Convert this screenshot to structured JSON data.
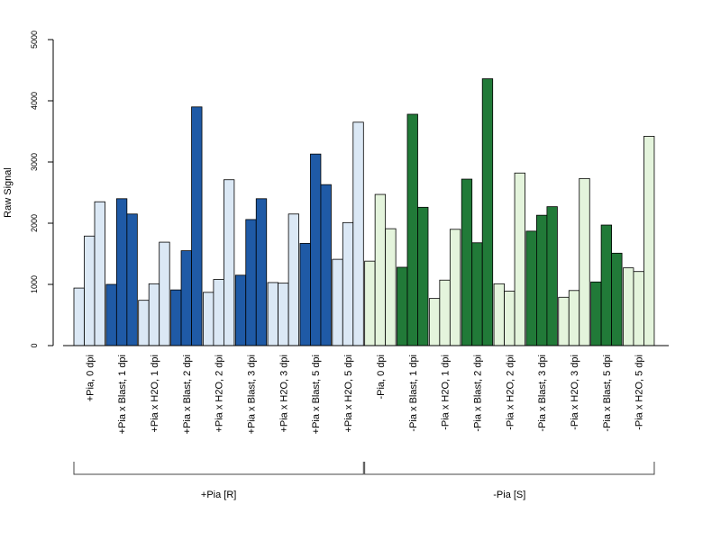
{
  "chart_data": {
    "type": "bar",
    "title": "",
    "xlabel": "",
    "ylabel": "Raw Signal",
    "ylim": [
      0,
      5000
    ],
    "yticks": [
      0,
      1000,
      2000,
      3000,
      4000,
      5000
    ],
    "grid": false,
    "colors": {
      "light_blue": "#dbe8f5",
      "dark_blue": "#1f5aa6",
      "light_green": "#e4f4dc",
      "dark_green": "#217a38",
      "bar_outline": "#000000",
      "axis": "#000000"
    },
    "categories": [
      {
        "label": "+Pia, 0 dpi",
        "color": "light_blue",
        "values": [
          940,
          1790,
          2350
        ]
      },
      {
        "label": "+Pia x Blast, 1 dpi",
        "color": "dark_blue",
        "values": [
          1000,
          2400,
          2150
        ]
      },
      {
        "label": "+Pia x H2O, 1 dpi",
        "color": "light_blue",
        "values": [
          740,
          1010,
          1690
        ]
      },
      {
        "label": "+Pia x Blast, 2 dpi",
        "color": "dark_blue",
        "values": [
          910,
          1550,
          3900
        ]
      },
      {
        "label": "+Pia x H2O, 2 dpi",
        "color": "light_blue",
        "values": [
          870,
          1080,
          2710
        ]
      },
      {
        "label": "+Pia x Blast, 3 dpi",
        "color": "dark_blue",
        "values": [
          1150,
          2060,
          2400
        ]
      },
      {
        "label": "+Pia x H2O, 3 dpi",
        "color": "light_blue",
        "values": [
          1030,
          1020,
          2150
        ]
      },
      {
        "label": "+Pia x Blast, 5 dpi",
        "color": "dark_blue",
        "values": [
          1670,
          3130,
          2630
        ]
      },
      {
        "label": "+Pia x H2O, 5 dpi",
        "color": "light_blue",
        "values": [
          1410,
          2010,
          3650
        ]
      },
      {
        "label": "-Pia, 0 dpi",
        "color": "light_green",
        "values": [
          1380,
          2470,
          1910
        ]
      },
      {
        "label": "-Pia x Blast, 1 dpi",
        "color": "dark_green",
        "values": [
          1280,
          3780,
          2260
        ]
      },
      {
        "label": "-Pia x H2O, 1 dpi",
        "color": "light_green",
        "values": [
          770,
          1070,
          1900
        ]
      },
      {
        "label": "-Pia x Blast, 2 dpi",
        "color": "dark_green",
        "values": [
          2720,
          1680,
          4360
        ]
      },
      {
        "label": "-Pia x H2O, 2 dpi",
        "color": "light_green",
        "values": [
          1010,
          890,
          2820
        ]
      },
      {
        "label": "-Pia x Blast, 3 dpi",
        "color": "dark_green",
        "values": [
          1870,
          2130,
          2270
        ]
      },
      {
        "label": "-Pia x H2O, 3 dpi",
        "color": "light_green",
        "values": [
          790,
          900,
          2730
        ]
      },
      {
        "label": "-Pia x Blast, 5 dpi",
        "color": "dark_green",
        "values": [
          1040,
          1970,
          1510
        ]
      },
      {
        "label": "-Pia x H2O, 5 dpi",
        "color": "light_green",
        "values": [
          1270,
          1210,
          3420
        ]
      }
    ],
    "groups": [
      {
        "label": "+Pia [R]",
        "first_category": 0,
        "last_category": 8
      },
      {
        "label": "-Pia [S]",
        "first_category": 9,
        "last_category": 17
      }
    ]
  }
}
